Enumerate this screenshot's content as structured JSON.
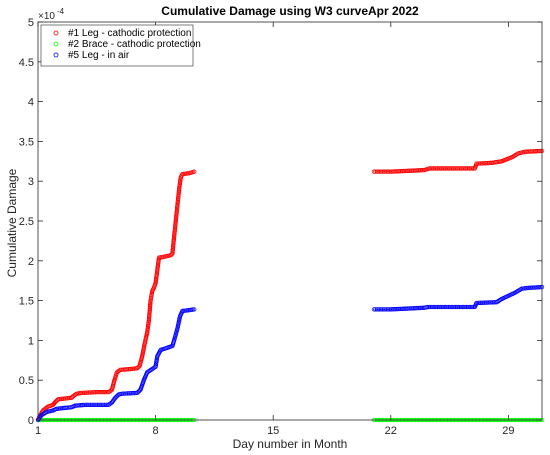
{
  "chart_data": {
    "type": "scatter",
    "title": "Cumulative Damage using W3 curveApr 2022",
    "xlabel": "Day number in Month",
    "ylabel": "Cumulative Damage",
    "y_exponent": {
      "base": "×10",
      "power": "-4"
    },
    "xlim": [
      1,
      31
    ],
    "ylim": [
      0,
      5
    ],
    "xticks": [
      1,
      8,
      15,
      22,
      29
    ],
    "yticks": [
      0,
      0.5,
      1,
      1.5,
      2,
      2.5,
      3,
      3.5,
      4,
      4.5,
      5
    ],
    "ytick_labels": [
      "0",
      "0.5",
      "1",
      "1.5",
      "2",
      "2.5",
      "3",
      "3.5",
      "4",
      "4.5",
      "5"
    ],
    "grid": false,
    "legend_position": "top-left",
    "marker": "circle",
    "series": [
      {
        "name": "#1 Leg - cathodic protection",
        "color": "#ff0000",
        "segments": [
          [
            [
              1.0,
              0.0
            ],
            [
              1.1,
              0.05
            ],
            [
              1.3,
              0.12
            ],
            [
              1.6,
              0.17
            ],
            [
              1.9,
              0.19
            ],
            [
              2.0,
              0.22
            ],
            [
              2.2,
              0.26
            ],
            [
              2.6,
              0.27
            ],
            [
              3.0,
              0.28
            ],
            [
              3.1,
              0.3
            ],
            [
              3.3,
              0.33
            ],
            [
              3.6,
              0.34
            ],
            [
              4.5,
              0.35
            ],
            [
              5.2,
              0.35
            ],
            [
              5.4,
              0.38
            ],
            [
              5.55,
              0.5
            ],
            [
              5.7,
              0.6
            ],
            [
              5.9,
              0.63
            ],
            [
              6.5,
              0.64
            ],
            [
              6.9,
              0.65
            ],
            [
              7.05,
              0.68
            ],
            [
              7.2,
              0.8
            ],
            [
              7.35,
              0.96
            ],
            [
              7.5,
              1.1
            ],
            [
              7.6,
              1.25
            ],
            [
              7.7,
              1.5
            ],
            [
              7.8,
              1.62
            ],
            [
              7.9,
              1.66
            ],
            [
              8.0,
              1.72
            ],
            [
              8.1,
              1.88
            ],
            [
              8.2,
              2.04
            ],
            [
              8.5,
              2.05
            ],
            [
              8.9,
              2.07
            ],
            [
              9.0,
              2.09
            ],
            [
              9.1,
              2.3
            ],
            [
              9.2,
              2.5
            ],
            [
              9.3,
              2.7
            ],
            [
              9.4,
              2.9
            ],
            [
              9.5,
              3.05
            ],
            [
              9.6,
              3.09
            ],
            [
              10.0,
              3.1
            ],
            [
              10.3,
              3.12
            ]
          ],
          [
            [
              21.0,
              3.12
            ],
            [
              22.0,
              3.12
            ],
            [
              23.0,
              3.13
            ],
            [
              24.0,
              3.14
            ],
            [
              24.3,
              3.16
            ],
            [
              25.5,
              3.16
            ],
            [
              27.0,
              3.16
            ],
            [
              27.1,
              3.22
            ],
            [
              28.0,
              3.23
            ],
            [
              28.6,
              3.25
            ],
            [
              29.2,
              3.3
            ],
            [
              29.6,
              3.35
            ],
            [
              30.0,
              3.37
            ],
            [
              31.0,
              3.38
            ]
          ]
        ]
      },
      {
        "name": "#2 Brace - cathodic protection",
        "color": "#00ff00",
        "segments": [
          [
            [
              1.0,
              0.0
            ],
            [
              10.3,
              0.0
            ]
          ],
          [
            [
              21.0,
              0.0
            ],
            [
              31.0,
              0.0
            ]
          ]
        ]
      },
      {
        "name": "#5 Leg - in air",
        "color": "#0000ff",
        "segments": [
          [
            [
              1.0,
              0.0
            ],
            [
              1.2,
              0.06
            ],
            [
              1.5,
              0.1
            ],
            [
              1.9,
              0.12
            ],
            [
              2.1,
              0.14
            ],
            [
              2.5,
              0.15
            ],
            [
              3.0,
              0.16
            ],
            [
              3.2,
              0.18
            ],
            [
              3.8,
              0.19
            ],
            [
              5.2,
              0.19
            ],
            [
              5.4,
              0.22
            ],
            [
              5.6,
              0.28
            ],
            [
              5.8,
              0.32
            ],
            [
              6.0,
              0.33
            ],
            [
              6.9,
              0.34
            ],
            [
              7.1,
              0.38
            ],
            [
              7.3,
              0.5
            ],
            [
              7.5,
              0.6
            ],
            [
              7.8,
              0.64
            ],
            [
              8.0,
              0.67
            ],
            [
              8.1,
              0.8
            ],
            [
              8.3,
              0.88
            ],
            [
              8.6,
              0.9
            ],
            [
              9.0,
              0.93
            ],
            [
              9.1,
              1.0
            ],
            [
              9.3,
              1.15
            ],
            [
              9.45,
              1.3
            ],
            [
              9.6,
              1.37
            ],
            [
              10.0,
              1.38
            ],
            [
              10.3,
              1.39
            ]
          ],
          [
            [
              21.0,
              1.39
            ],
            [
              22.0,
              1.39
            ],
            [
              23.0,
              1.4
            ],
            [
              24.0,
              1.41
            ],
            [
              24.2,
              1.42
            ],
            [
              27.0,
              1.42
            ],
            [
              27.1,
              1.47
            ],
            [
              28.3,
              1.48
            ],
            [
              28.6,
              1.52
            ],
            [
              29.4,
              1.6
            ],
            [
              29.8,
              1.65
            ],
            [
              30.2,
              1.66
            ],
            [
              31.0,
              1.67
            ]
          ]
        ]
      }
    ]
  }
}
